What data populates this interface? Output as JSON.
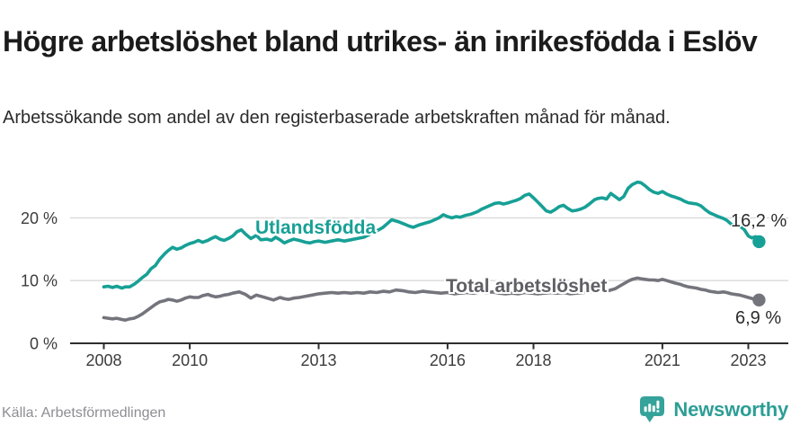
{
  "header": {
    "title": "Högre arbetslöshet bland utrikes- än inrikesfödda i Eslöv",
    "subtitle": "Arbetssökande som andel av den registerbaserade arbetskraften månad för månad."
  },
  "footer": {
    "source": "Källa: Arbetsförmedlingen",
    "brand": "Newsworthy"
  },
  "colors": {
    "accent_teal": "#17a096",
    "line_gray": "#74747c",
    "label_gray": "#5f5f66",
    "axis_text": "#3c3c3c",
    "gridline": "#dadada",
    "axis_line": "#2e2e2e",
    "value_label": "#2b2b2b",
    "source_text": "#8d8d95",
    "brand_teal": "#2d9e95"
  },
  "chart_data": {
    "type": "line",
    "title": "Högre arbetslöshet bland utrikes- än inrikesfödda i Eslöv",
    "subtitle": "Arbetssökande som andel av den registerbaserade arbetskraften månad för månad.",
    "source": "Källa: Arbetsförmedlingen",
    "xlabel": "",
    "ylabel": "",
    "xlim": [
      2008,
      2023.3
    ],
    "ylim": [
      0,
      26
    ],
    "grid": "horizontal",
    "legend_position": "inline-labels-on-lines",
    "x_ticks": [
      {
        "year": 2008,
        "label": "2008"
      },
      {
        "year": 2010,
        "label": "2010"
      },
      {
        "year": 2013,
        "label": "2013"
      },
      {
        "year": 2016,
        "label": "2016"
      },
      {
        "year": 2018,
        "label": "2018"
      },
      {
        "year": 2021,
        "label": "2021"
      },
      {
        "year": 2023,
        "label": "2023"
      }
    ],
    "y_ticks": [
      {
        "value": 0,
        "label": "0 %"
      },
      {
        "value": 10,
        "label": "10 %"
      },
      {
        "value": 20,
        "label": "20 %"
      }
    ],
    "series": [
      {
        "name": "Utlandsfödda",
        "color": "#17a096",
        "end_label": "16,2 %",
        "end_value": 16.2,
        "points": [
          [
            2008.0,
            9.0
          ],
          [
            2008.1,
            9.1
          ],
          [
            2008.2,
            8.9
          ],
          [
            2008.3,
            9.1
          ],
          [
            2008.42,
            8.8
          ],
          [
            2008.5,
            9.0
          ],
          [
            2008.6,
            9.0
          ],
          [
            2008.7,
            9.4
          ],
          [
            2008.8,
            9.9
          ],
          [
            2008.9,
            10.5
          ],
          [
            2009.0,
            11.0
          ],
          [
            2009.1,
            11.9
          ],
          [
            2009.2,
            12.4
          ],
          [
            2009.3,
            13.4
          ],
          [
            2009.42,
            14.3
          ],
          [
            2009.5,
            14.8
          ],
          [
            2009.6,
            15.3
          ],
          [
            2009.7,
            15.0
          ],
          [
            2009.8,
            15.2
          ],
          [
            2009.9,
            15.6
          ],
          [
            2010.0,
            15.9
          ],
          [
            2010.1,
            16.1
          ],
          [
            2010.2,
            16.4
          ],
          [
            2010.3,
            16.1
          ],
          [
            2010.42,
            16.4
          ],
          [
            2010.5,
            16.7
          ],
          [
            2010.6,
            17.0
          ],
          [
            2010.7,
            16.6
          ],
          [
            2010.8,
            16.4
          ],
          [
            2010.9,
            16.7
          ],
          [
            2011.0,
            17.1
          ],
          [
            2011.1,
            17.8
          ],
          [
            2011.2,
            18.1
          ],
          [
            2011.3,
            17.4
          ],
          [
            2011.42,
            16.7
          ],
          [
            2011.55,
            17.2
          ],
          [
            2011.65,
            16.5
          ],
          [
            2011.8,
            16.6
          ],
          [
            2011.9,
            16.4
          ],
          [
            2012.0,
            16.9
          ],
          [
            2012.1,
            16.5
          ],
          [
            2012.2,
            16.0
          ],
          [
            2012.3,
            16.3
          ],
          [
            2012.42,
            16.6
          ],
          [
            2012.55,
            16.4
          ],
          [
            2012.7,
            16.1
          ],
          [
            2012.8,
            16.0
          ],
          [
            2012.9,
            16.2
          ],
          [
            2013.0,
            16.3
          ],
          [
            2013.15,
            16.1
          ],
          [
            2013.3,
            16.3
          ],
          [
            2013.45,
            16.5
          ],
          [
            2013.6,
            16.3
          ],
          [
            2013.75,
            16.5
          ],
          [
            2013.9,
            16.7
          ],
          [
            2014.05,
            16.9
          ],
          [
            2014.2,
            17.4
          ],
          [
            2014.35,
            17.9
          ],
          [
            2014.5,
            18.5
          ],
          [
            2014.6,
            19.1
          ],
          [
            2014.7,
            19.7
          ],
          [
            2014.85,
            19.4
          ],
          [
            2015.0,
            19.0
          ],
          [
            2015.1,
            18.7
          ],
          [
            2015.2,
            18.5
          ],
          [
            2015.35,
            18.9
          ],
          [
            2015.5,
            19.2
          ],
          [
            2015.6,
            19.4
          ],
          [
            2015.7,
            19.7
          ],
          [
            2015.8,
            20.0
          ],
          [
            2015.9,
            20.5
          ],
          [
            2016.0,
            20.2
          ],
          [
            2016.1,
            20.0
          ],
          [
            2016.2,
            20.2
          ],
          [
            2016.3,
            20.1
          ],
          [
            2016.42,
            20.4
          ],
          [
            2016.55,
            20.6
          ],
          [
            2016.7,
            21.0
          ],
          [
            2016.8,
            21.4
          ],
          [
            2016.9,
            21.7
          ],
          [
            2017.0,
            22.0
          ],
          [
            2017.1,
            22.3
          ],
          [
            2017.2,
            22.4
          ],
          [
            2017.3,
            22.2
          ],
          [
            2017.42,
            22.4
          ],
          [
            2017.5,
            22.6
          ],
          [
            2017.6,
            22.8
          ],
          [
            2017.7,
            23.1
          ],
          [
            2017.8,
            23.6
          ],
          [
            2017.9,
            23.8
          ],
          [
            2018.0,
            23.2
          ],
          [
            2018.1,
            22.5
          ],
          [
            2018.2,
            21.8
          ],
          [
            2018.3,
            21.1
          ],
          [
            2018.4,
            20.9
          ],
          [
            2018.5,
            21.3
          ],
          [
            2018.6,
            21.8
          ],
          [
            2018.7,
            22.0
          ],
          [
            2018.8,
            21.5
          ],
          [
            2018.9,
            21.1
          ],
          [
            2019.0,
            21.2
          ],
          [
            2019.1,
            21.4
          ],
          [
            2019.2,
            21.7
          ],
          [
            2019.3,
            22.2
          ],
          [
            2019.42,
            22.9
          ],
          [
            2019.5,
            23.1
          ],
          [
            2019.6,
            23.2
          ],
          [
            2019.7,
            23.0
          ],
          [
            2019.8,
            23.9
          ],
          [
            2019.9,
            23.4
          ],
          [
            2020.0,
            22.9
          ],
          [
            2020.1,
            23.4
          ],
          [
            2020.2,
            24.7
          ],
          [
            2020.3,
            25.3
          ],
          [
            2020.42,
            25.7
          ],
          [
            2020.5,
            25.6
          ],
          [
            2020.6,
            25.1
          ],
          [
            2020.7,
            24.5
          ],
          [
            2020.8,
            24.1
          ],
          [
            2020.9,
            23.9
          ],
          [
            2021.0,
            24.2
          ],
          [
            2021.1,
            23.8
          ],
          [
            2021.2,
            23.5
          ],
          [
            2021.3,
            23.3
          ],
          [
            2021.42,
            23.0
          ],
          [
            2021.5,
            22.7
          ],
          [
            2021.6,
            22.4
          ],
          [
            2021.7,
            22.3
          ],
          [
            2021.8,
            22.2
          ],
          [
            2021.9,
            21.9
          ],
          [
            2022.0,
            21.3
          ],
          [
            2022.1,
            20.8
          ],
          [
            2022.2,
            20.5
          ],
          [
            2022.3,
            20.2
          ],
          [
            2022.42,
            19.9
          ],
          [
            2022.5,
            19.6
          ],
          [
            2022.6,
            19.0
          ],
          [
            2022.7,
            18.8
          ],
          [
            2022.8,
            18.7
          ],
          [
            2022.9,
            18.2
          ],
          [
            2023.0,
            17.1
          ],
          [
            2023.08,
            16.8
          ],
          [
            2023.17,
            17.0
          ],
          [
            2023.25,
            16.2
          ]
        ]
      },
      {
        "name": "Total arbetslöshet",
        "color": "#74747c",
        "end_label": "6,9 %",
        "end_value": 6.9,
        "points": [
          [
            2008.0,
            4.1
          ],
          [
            2008.1,
            4.0
          ],
          [
            2008.2,
            3.9
          ],
          [
            2008.3,
            4.0
          ],
          [
            2008.42,
            3.8
          ],
          [
            2008.5,
            3.7
          ],
          [
            2008.6,
            3.9
          ],
          [
            2008.7,
            4.0
          ],
          [
            2008.8,
            4.3
          ],
          [
            2008.9,
            4.7
          ],
          [
            2009.0,
            5.2
          ],
          [
            2009.1,
            5.7
          ],
          [
            2009.2,
            6.2
          ],
          [
            2009.3,
            6.6
          ],
          [
            2009.42,
            6.8
          ],
          [
            2009.5,
            7.0
          ],
          [
            2009.6,
            6.9
          ],
          [
            2009.7,
            6.7
          ],
          [
            2009.8,
            6.9
          ],
          [
            2009.9,
            7.2
          ],
          [
            2010.0,
            7.4
          ],
          [
            2010.1,
            7.3
          ],
          [
            2010.2,
            7.3
          ],
          [
            2010.3,
            7.6
          ],
          [
            2010.42,
            7.8
          ],
          [
            2010.5,
            7.6
          ],
          [
            2010.6,
            7.4
          ],
          [
            2010.7,
            7.5
          ],
          [
            2010.8,
            7.7
          ],
          [
            2010.9,
            7.8
          ],
          [
            2011.0,
            8.0
          ],
          [
            2011.15,
            8.2
          ],
          [
            2011.3,
            7.8
          ],
          [
            2011.42,
            7.2
          ],
          [
            2011.55,
            7.7
          ],
          [
            2011.7,
            7.4
          ],
          [
            2011.8,
            7.2
          ],
          [
            2011.95,
            6.9
          ],
          [
            2012.1,
            7.3
          ],
          [
            2012.2,
            7.1
          ],
          [
            2012.3,
            7.0
          ],
          [
            2012.42,
            7.2
          ],
          [
            2012.55,
            7.3
          ],
          [
            2012.7,
            7.5
          ],
          [
            2012.85,
            7.7
          ],
          [
            2013.0,
            7.9
          ],
          [
            2013.15,
            8.0
          ],
          [
            2013.3,
            8.1
          ],
          [
            2013.45,
            8.0
          ],
          [
            2013.6,
            8.1
          ],
          [
            2013.75,
            8.0
          ],
          [
            2013.9,
            8.1
          ],
          [
            2014.05,
            8.0
          ],
          [
            2014.2,
            8.2
          ],
          [
            2014.35,
            8.1
          ],
          [
            2014.5,
            8.3
          ],
          [
            2014.65,
            8.2
          ],
          [
            2014.8,
            8.5
          ],
          [
            2014.95,
            8.4
          ],
          [
            2015.1,
            8.2
          ],
          [
            2015.25,
            8.1
          ],
          [
            2015.42,
            8.3
          ],
          [
            2015.55,
            8.2
          ],
          [
            2015.7,
            8.1
          ],
          [
            2015.85,
            8.0
          ],
          [
            2016.0,
            8.1
          ],
          [
            2016.15,
            7.9
          ],
          [
            2016.3,
            8.0
          ],
          [
            2016.45,
            8.1
          ],
          [
            2016.6,
            8.0
          ],
          [
            2016.75,
            8.2
          ],
          [
            2016.9,
            8.1
          ],
          [
            2017.05,
            8.2
          ],
          [
            2017.2,
            8.0
          ],
          [
            2017.35,
            7.9
          ],
          [
            2017.5,
            8.0
          ],
          [
            2017.65,
            7.9
          ],
          [
            2017.8,
            8.1
          ],
          [
            2017.95,
            8.0
          ],
          [
            2018.1,
            7.9
          ],
          [
            2018.25,
            8.0
          ],
          [
            2018.42,
            8.1
          ],
          [
            2018.55,
            8.0
          ],
          [
            2018.7,
            8.1
          ],
          [
            2018.85,
            7.9
          ],
          [
            2019.0,
            8.0
          ],
          [
            2019.15,
            8.1
          ],
          [
            2019.3,
            8.2
          ],
          [
            2019.45,
            8.3
          ],
          [
            2019.6,
            8.3
          ],
          [
            2019.75,
            8.4
          ],
          [
            2019.9,
            8.7
          ],
          [
            2020.0,
            9.1
          ],
          [
            2020.1,
            9.5
          ],
          [
            2020.2,
            9.9
          ],
          [
            2020.3,
            10.2
          ],
          [
            2020.42,
            10.4
          ],
          [
            2020.5,
            10.3
          ],
          [
            2020.6,
            10.2
          ],
          [
            2020.7,
            10.1
          ],
          [
            2020.8,
            10.1
          ],
          [
            2020.9,
            10.0
          ],
          [
            2021.0,
            10.2
          ],
          [
            2021.1,
            10.0
          ],
          [
            2021.2,
            9.8
          ],
          [
            2021.3,
            9.6
          ],
          [
            2021.42,
            9.4
          ],
          [
            2021.5,
            9.2
          ],
          [
            2021.6,
            9.0
          ],
          [
            2021.7,
            8.9
          ],
          [
            2021.8,
            8.8
          ],
          [
            2021.9,
            8.6
          ],
          [
            2022.0,
            8.5
          ],
          [
            2022.1,
            8.3
          ],
          [
            2022.2,
            8.2
          ],
          [
            2022.3,
            8.1
          ],
          [
            2022.42,
            8.2
          ],
          [
            2022.5,
            8.1
          ],
          [
            2022.6,
            7.9
          ],
          [
            2022.7,
            7.8
          ],
          [
            2022.8,
            7.7
          ],
          [
            2022.9,
            7.5
          ],
          [
            2023.0,
            7.3
          ],
          [
            2023.1,
            7.1
          ],
          [
            2023.17,
            7.0
          ],
          [
            2023.25,
            6.9
          ]
        ]
      }
    ]
  }
}
